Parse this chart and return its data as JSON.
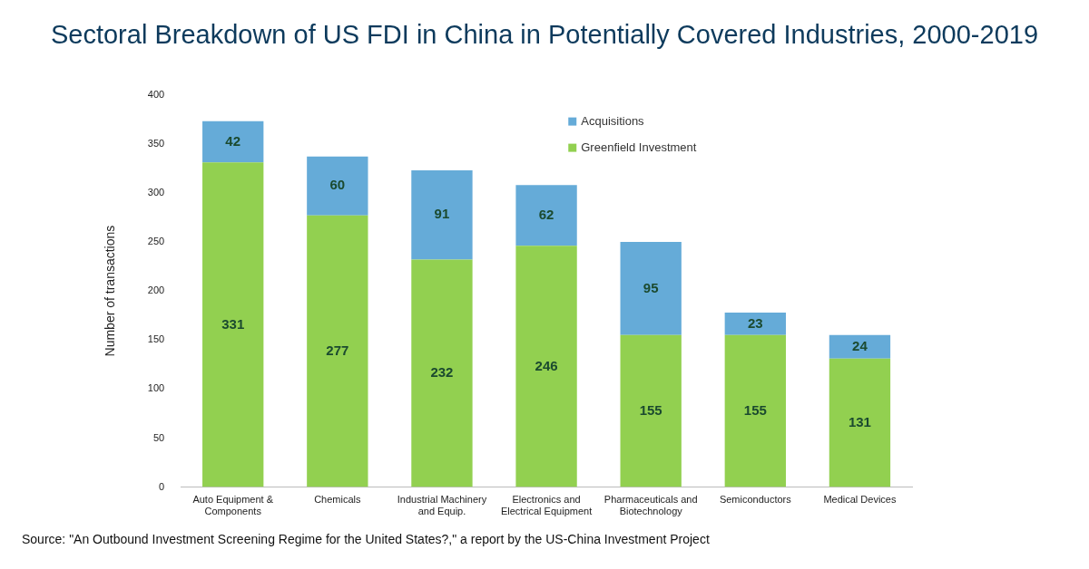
{
  "chart_data": {
    "type": "bar",
    "title": "Sectoral Breakdown of US FDI in China in Potentially Covered Industries, 2000-2019",
    "ylabel": "Number of transactions",
    "categories": [
      "Auto Equipment & Components",
      "Chemicals",
      "Industrial Machinery and Equip.",
      "Electronics and Electrical Equipment",
      "Pharmaceuticals and Biotechnology",
      "Semiconductors",
      "Medical Devices"
    ],
    "series": [
      {
        "name": "Greenfield Investment",
        "color": "#92d050",
        "values": [
          331,
          277,
          232,
          246,
          155,
          155,
          131
        ]
      },
      {
        "name": "Acquisitions",
        "color": "#65abd8",
        "values": [
          42,
          60,
          91,
          62,
          95,
          23,
          24
        ]
      }
    ],
    "stacked": true,
    "data_labels": true,
    "legend": "top right",
    "grid": false,
    "ylim": [
      0,
      400
    ],
    "yticks": [
      0,
      50,
      100,
      150,
      200,
      250,
      300,
      350,
      400
    ],
    "annotations": [
      "Source: \"An Outbound Investment Screening Regime for the United States?,\" a report by the US-China Investment Project"
    ]
  }
}
